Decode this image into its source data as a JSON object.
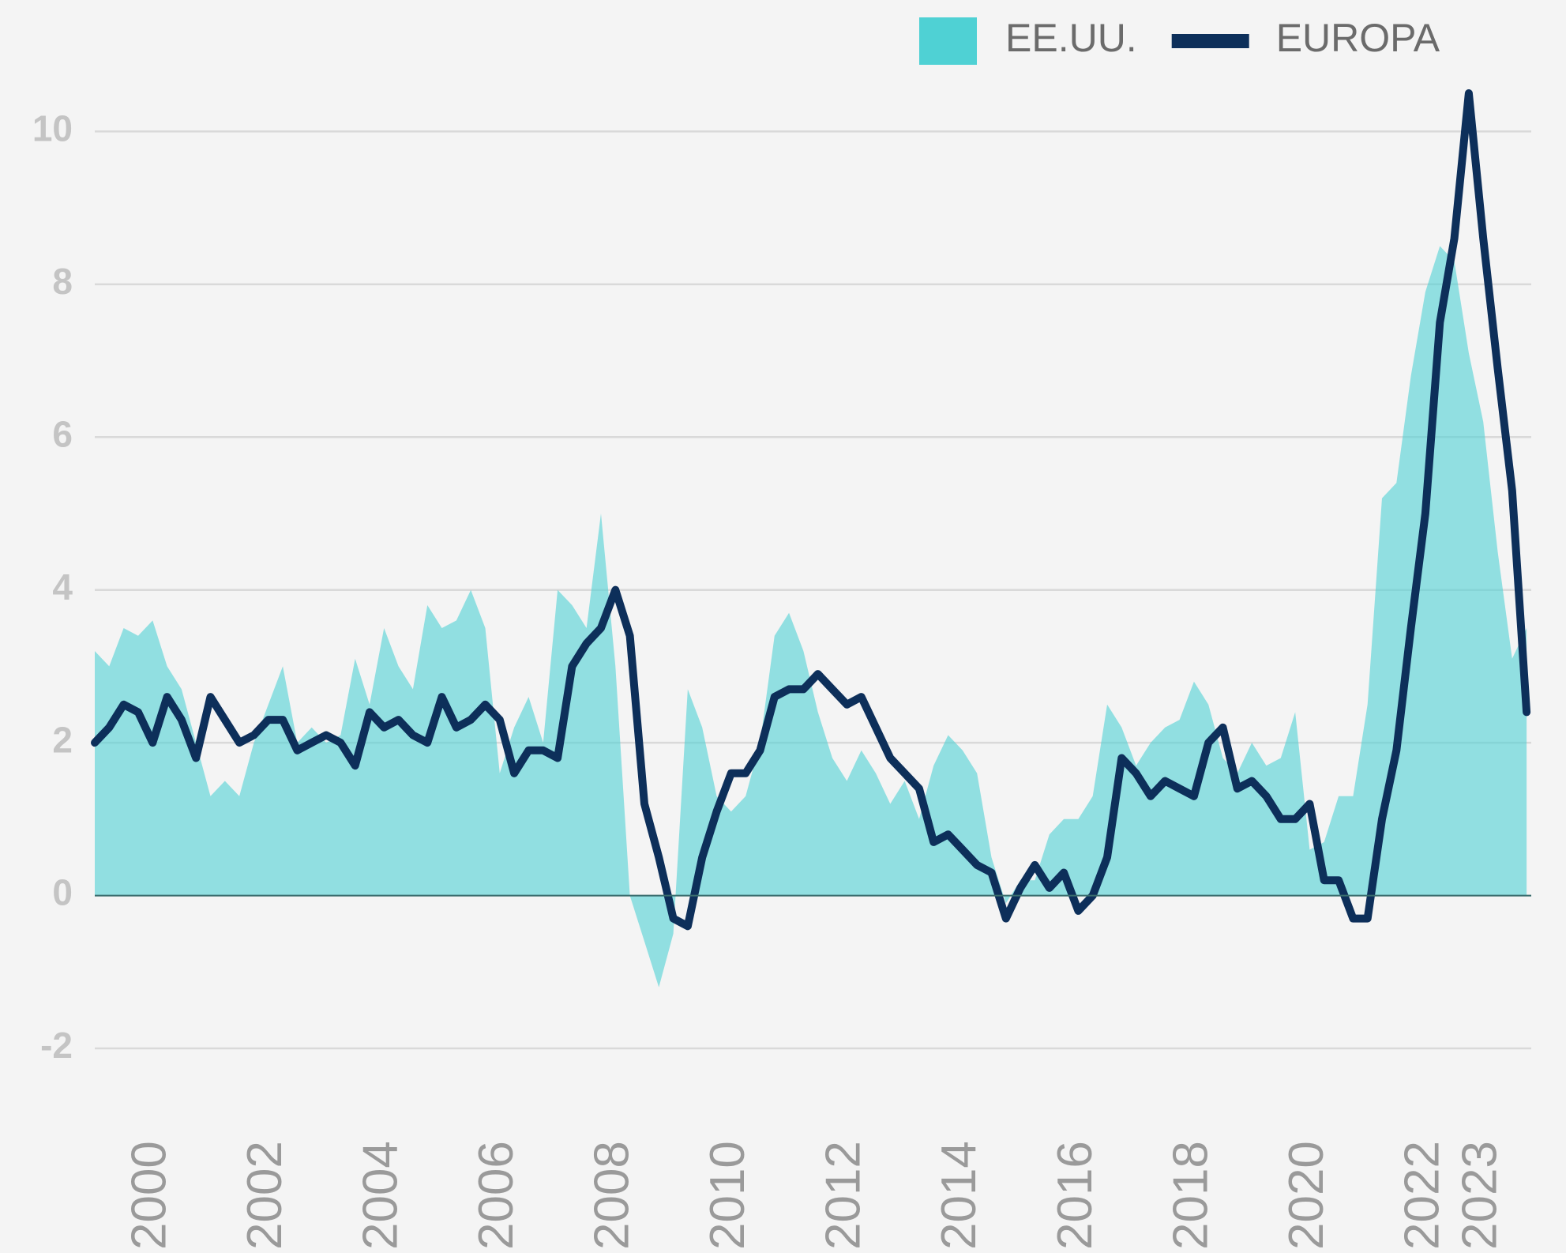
{
  "chart_data": {
    "type": "area_line",
    "legend": "top-right",
    "grid": true,
    "xlim": [
      1999,
      2023.83
    ],
    "xticks": [
      2000,
      2002,
      2004,
      2006,
      2008,
      2010,
      2012,
      2014,
      2016,
      2018,
      2020,
      2022,
      2023
    ],
    "ylim": [
      -2,
      10.8
    ],
    "yticks": [
      -2,
      0,
      2,
      4,
      6,
      8,
      10
    ],
    "x": [
      1999,
      1999.25,
      1999.5,
      1999.75,
      2000,
      2000.25,
      2000.5,
      2000.75,
      2001,
      2001.25,
      2001.5,
      2001.75,
      2002,
      2002.25,
      2002.5,
      2002.75,
      2003,
      2003.25,
      2003.5,
      2003.75,
      2004,
      2004.25,
      2004.5,
      2004.75,
      2005,
      2005.25,
      2005.5,
      2005.75,
      2006,
      2006.25,
      2006.5,
      2006.75,
      2007,
      2007.25,
      2007.5,
      2007.75,
      2008,
      2008.25,
      2008.5,
      2008.75,
      2009,
      2009.25,
      2009.5,
      2009.75,
      2010,
      2010.25,
      2010.5,
      2010.75,
      2011,
      2011.25,
      2011.5,
      2011.75,
      2012,
      2012.25,
      2012.5,
      2012.75,
      2013,
      2013.25,
      2013.5,
      2013.75,
      2014,
      2014.25,
      2014.5,
      2014.75,
      2015,
      2015.25,
      2015.5,
      2015.75,
      2016,
      2016.25,
      2016.5,
      2016.75,
      2017,
      2017.25,
      2017.5,
      2017.75,
      2018,
      2018.25,
      2018.5,
      2018.75,
      2019,
      2019.25,
      2019.5,
      2019.75,
      2020,
      2020.25,
      2020.5,
      2020.75,
      2021,
      2021.25,
      2021.5,
      2021.75,
      2022,
      2022.25,
      2022.5,
      2022.75,
      2023,
      2023.25,
      2023.5,
      2023.75
    ],
    "series": [
      {
        "name": "EE.UU.",
        "color": "#4fd1d4",
        "kind": "area",
        "values": [
          3.2,
          3.0,
          3.5,
          3.4,
          3.6,
          3.0,
          2.7,
          2.0,
          1.3,
          1.5,
          1.3,
          2.0,
          2.5,
          3.0,
          2.0,
          2.2,
          2.0,
          2.1,
          3.1,
          2.5,
          3.5,
          3.0,
          2.7,
          3.8,
          3.5,
          3.6,
          4.0,
          3.5,
          1.6,
          2.2,
          2.6,
          2.0,
          4.0,
          3.8,
          3.5,
          5.0,
          3.0,
          0.0,
          -0.6,
          -1.2,
          -0.5,
          2.7,
          2.2,
          1.3,
          1.1,
          1.3,
          2.0,
          3.4,
          3.7,
          3.2,
          2.4,
          1.8,
          1.5,
          1.9,
          1.6,
          1.2,
          1.5,
          1.0,
          1.7,
          2.1,
          1.9,
          1.6,
          0.5,
          -0.1,
          0.2,
          0.2,
          0.8,
          1.0,
          1.0,
          1.3,
          2.5,
          2.2,
          1.7,
          2.0,
          2.2,
          2.3,
          2.8,
          2.5,
          1.8,
          1.6,
          2.0,
          1.7,
          1.8,
          2.4,
          0.6,
          0.7,
          1.3,
          1.3,
          2.5,
          5.2,
          5.4,
          6.8,
          7.9,
          8.5,
          8.3,
          7.1,
          6.2,
          4.5,
          3.1,
          3.5
        ]
      },
      {
        "name": "EUROPA",
        "color": "#0d2f5a",
        "kind": "line",
        "values": [
          2.0,
          2.2,
          2.5,
          2.4,
          2.0,
          2.6,
          2.3,
          1.8,
          2.6,
          2.3,
          2.0,
          2.1,
          2.3,
          2.3,
          1.9,
          2.0,
          2.1,
          2.0,
          1.7,
          2.4,
          2.2,
          2.3,
          2.1,
          2.0,
          2.6,
          2.2,
          2.3,
          2.5,
          2.3,
          1.6,
          1.9,
          1.9,
          1.8,
          3.0,
          3.3,
          3.5,
          4.0,
          3.4,
          1.2,
          0.5,
          -0.3,
          -0.4,
          0.5,
          1.1,
          1.6,
          1.6,
          1.9,
          2.6,
          2.7,
          2.7,
          2.9,
          2.7,
          2.5,
          2.6,
          2.2,
          1.8,
          1.6,
          1.4,
          0.7,
          0.8,
          0.6,
          0.4,
          0.3,
          -0.3,
          0.1,
          0.4,
          0.1,
          0.3,
          -0.2,
          0.0,
          0.5,
          1.8,
          1.6,
          1.3,
          1.5,
          1.4,
          1.3,
          2.0,
          2.2,
          1.4,
          1.5,
          1.3,
          1.0,
          1.0,
          1.2,
          0.2,
          0.2,
          -0.3,
          -0.3,
          1.0,
          1.9,
          3.5,
          5.0,
          7.5,
          8.6,
          10.5,
          8.6,
          6.9,
          5.3,
          2.4
        ]
      }
    ]
  }
}
